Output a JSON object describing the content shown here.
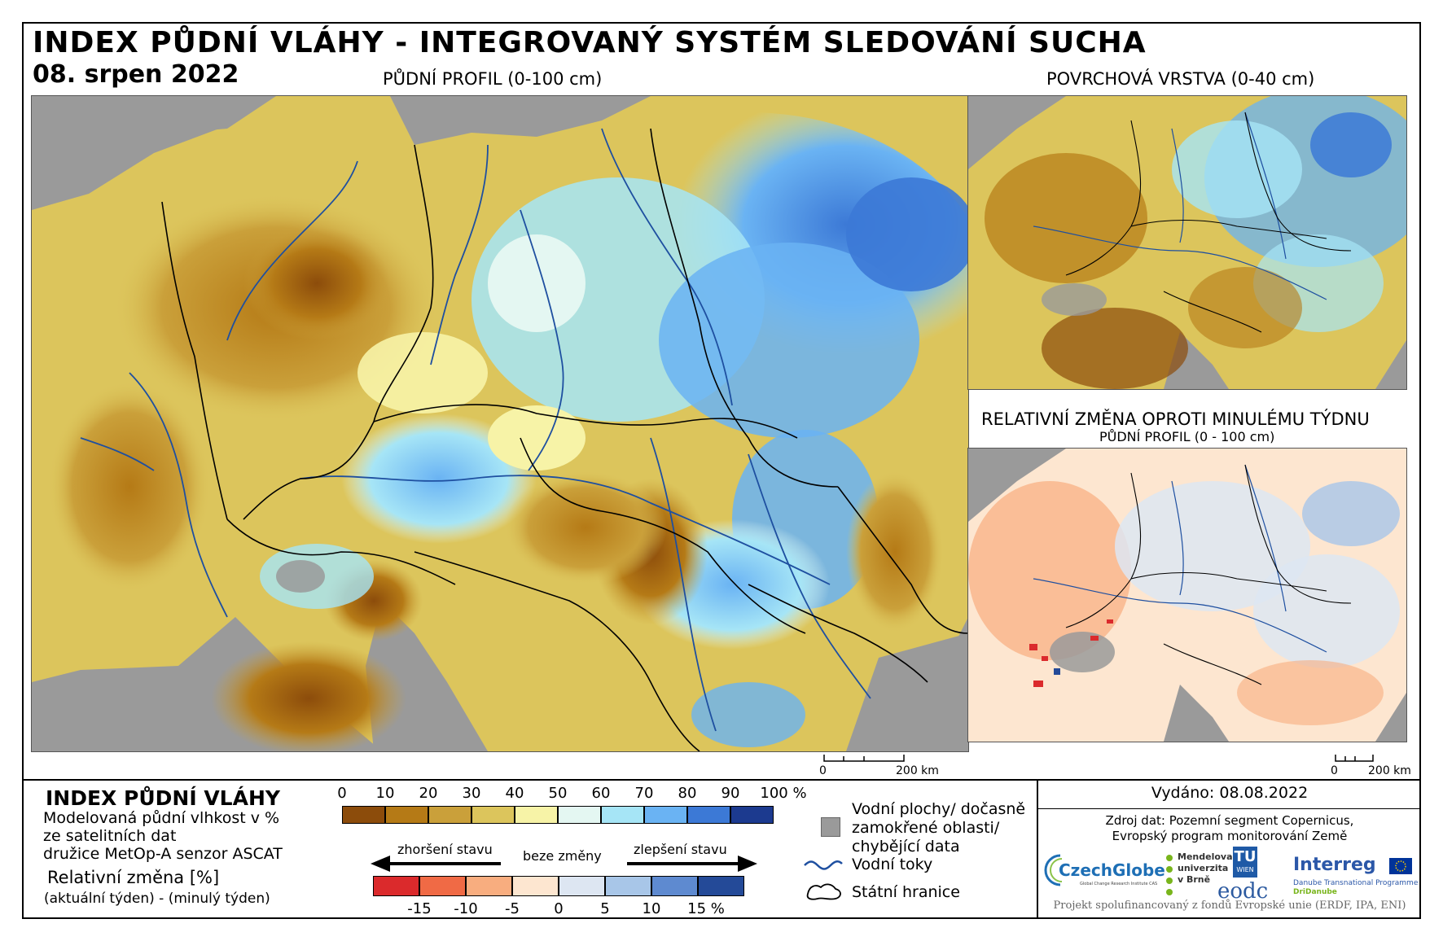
{
  "header": {
    "title": "INDEX PŮDNÍ VLÁHY - INTEGROVANÝ SYSTÉM SLEDOVÁNÍ SUCHA",
    "date": "08. srpen 2022"
  },
  "panels": {
    "main": {
      "title": "PŮDNÍ PROFIL (0-100 cm)"
    },
    "surface": {
      "title": "POVRCHOVÁ VRSTVA (0-40 cm)"
    },
    "change": {
      "title": "RELATIVNÍ ZMĚNA OPROTI MINULÉMU TÝDNU",
      "subtitle": "PŮDNÍ PROFIL (0 - 100 cm)"
    }
  },
  "scalebar": {
    "start": "0",
    "end": "200 km"
  },
  "legend": {
    "title": "INDEX PŮDNÍ VLÁHY",
    "desc": [
      "Modelovaná půdní vlhkost v %",
      "ze satelitních dat",
      "družice MetOp-A senzor ASCAT"
    ],
    "relative_title": "Relativní změna [%]",
    "relative_sub": "(aktuální týden) - (minulý týden)",
    "soil_ticks": [
      "0",
      "10",
      "20",
      "30",
      "40",
      "50",
      "60",
      "70",
      "80",
      "90",
      "100 %"
    ],
    "soil_colors": [
      "#8c4c0b",
      "#b57a16",
      "#caa03a",
      "#dcc55c",
      "#f7f3a7",
      "#e4f7f2",
      "#a6e5f6",
      "#6ab3f3",
      "#3c79d6",
      "#1c3a8f"
    ],
    "arrow_worse": "zhoršení stavu",
    "arrow_same": "beze změny",
    "arrow_better": "zlepšení stavu",
    "change_ticks": [
      "-15",
      "-10",
      "-5",
      "0",
      "5",
      "10",
      "15 %"
    ],
    "change_colors": [
      "#db2a2c",
      "#f06a45",
      "#f8ad7f",
      "#fde6d0",
      "#dde6f2",
      "#a8c6e8",
      "#5e8ad0",
      "#244a98"
    ],
    "items": {
      "water": "Vodní plochy/ dočasně zamokřené oblasti/ chybějící data",
      "rivers": "Vodní toky",
      "borders": "Státní hranice"
    }
  },
  "footer": {
    "issued": "Vydáno: 08.08.2022",
    "source_1": "Zdroj dat: Pozemní segment Copernicus,",
    "source_2": "Evropský program monitorování Země",
    "funding": "Projekt spolufinancovaný z fondů Evropské unie (ERDF, IPA, ENI)",
    "logos": {
      "czechglobe": "CzechGlobe",
      "czechglobe_sub": "Global Change Research Institute CAS",
      "mendelu": [
        "Mendelova",
        "univerzita",
        "v Brně"
      ],
      "tuwien": [
        "TU",
        "WIEN"
      ],
      "eodc": "eodc",
      "interreg": "Interreg",
      "interreg_sub_1": "Danube Transnational Programme",
      "interreg_sub_2": "DriDanube"
    }
  }
}
